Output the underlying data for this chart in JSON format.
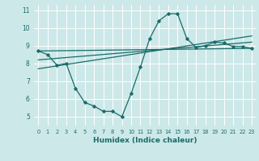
{
  "title": "",
  "xlabel": "Humidex (Indice chaleur)",
  "background_color": "#cde8e8",
  "line_color": "#1a6b6b",
  "xlim": [
    -0.5,
    23.5
  ],
  "ylim": [
    4.5,
    11.3
  ],
  "yticks": [
    5,
    6,
    7,
    8,
    9,
    10,
    11
  ],
  "xticks": [
    0,
    1,
    2,
    3,
    4,
    5,
    6,
    7,
    8,
    9,
    10,
    11,
    12,
    13,
    14,
    15,
    16,
    17,
    18,
    19,
    20,
    21,
    22,
    23
  ],
  "series1_x": [
    0,
    1,
    2,
    3,
    4,
    5,
    6,
    7,
    8,
    9,
    10,
    11,
    12,
    13,
    14,
    15,
    16,
    17,
    18,
    19,
    20,
    21,
    22,
    23
  ],
  "series1_y": [
    8.7,
    8.5,
    7.9,
    8.0,
    6.6,
    5.8,
    5.6,
    5.3,
    5.3,
    5.0,
    6.3,
    7.8,
    9.4,
    10.4,
    10.8,
    10.8,
    9.4,
    8.9,
    9.0,
    9.2,
    9.15,
    8.95,
    8.95,
    8.85
  ],
  "series2_x": [
    0,
    23
  ],
  "series2_y": [
    8.7,
    8.85
  ],
  "series3_x": [
    0,
    23
  ],
  "series3_y": [
    8.2,
    9.2
  ],
  "series4_x": [
    0,
    23
  ],
  "series4_y": [
    7.7,
    9.55
  ],
  "grid_color": "#ffffff",
  "font_color": "#1a6b6b",
  "xlabel_fontsize": 6.5,
  "tick_fontsize_x": 4.8,
  "tick_fontsize_y": 5.5
}
